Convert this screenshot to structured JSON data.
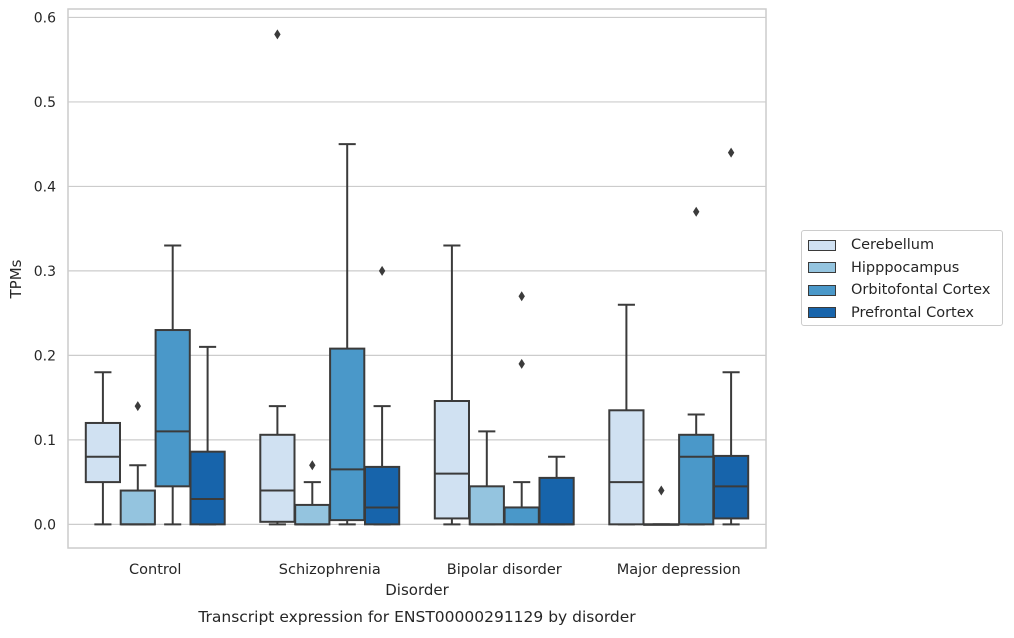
{
  "chart_data": {
    "type": "box",
    "title": "",
    "caption": "Transcript expression for ENST00000291129 by disorder",
    "xlabel": "Disorder",
    "ylabel": "TPMs",
    "ylim": [
      -0.028,
      0.61
    ],
    "yticks": [
      "0.0",
      "0.1",
      "0.2",
      "0.3",
      "0.4",
      "0.5",
      "0.6"
    ],
    "grid": "horizontal",
    "legend_position": "right",
    "categories": [
      "Control",
      "Schizophrenia",
      "Bipolar disorder",
      "Major depression"
    ],
    "series": [
      {
        "name": "Cerebellum",
        "color": "#d0e1f2",
        "boxes": [
          {
            "whislo": 0.0,
            "q1": 0.05,
            "med": 0.08,
            "q3": 0.12,
            "whishi": 0.18,
            "fliers": []
          },
          {
            "whislo": 0.0,
            "q1": 0.003,
            "med": 0.04,
            "q3": 0.106,
            "whishi": 0.14,
            "fliers": [
              0.58
            ]
          },
          {
            "whislo": 0.0,
            "q1": 0.007,
            "med": 0.06,
            "q3": 0.146,
            "whishi": 0.33,
            "fliers": []
          },
          {
            "whislo": 0.0,
            "q1": 0.0,
            "med": 0.05,
            "q3": 0.135,
            "whishi": 0.26,
            "fliers": []
          }
        ]
      },
      {
        "name": "Hipppocampus",
        "color": "#94c4df",
        "boxes": [
          {
            "whislo": 0.0,
            "q1": 0.0,
            "med": 0.0,
            "q3": 0.04,
            "whishi": 0.07,
            "fliers": [
              0.14
            ]
          },
          {
            "whislo": 0.0,
            "q1": 0.0,
            "med": 0.0,
            "q3": 0.023,
            "whishi": 0.05,
            "fliers": [
              0.07
            ]
          },
          {
            "whislo": 0.0,
            "q1": 0.0,
            "med": 0.0,
            "q3": 0.045,
            "whishi": 0.11,
            "fliers": []
          },
          {
            "whislo": 0.0,
            "q1": 0.0,
            "med": 0.0,
            "q3": 0.0,
            "whishi": 0.0,
            "fliers": [
              0.04
            ]
          }
        ]
      },
      {
        "name": "Orbitofontal Cortex",
        "color": "#4a98c9",
        "boxes": [
          {
            "whislo": 0.0,
            "q1": 0.045,
            "med": 0.11,
            "q3": 0.23,
            "whishi": 0.33,
            "fliers": []
          },
          {
            "whislo": 0.0,
            "q1": 0.005,
            "med": 0.065,
            "q3": 0.208,
            "whishi": 0.45,
            "fliers": []
          },
          {
            "whislo": 0.0,
            "q1": 0.0,
            "med": 0.0,
            "q3": 0.02,
            "whishi": 0.05,
            "fliers": [
              0.19,
              0.27
            ]
          },
          {
            "whislo": 0.0,
            "q1": 0.0,
            "med": 0.08,
            "q3": 0.106,
            "whishi": 0.13,
            "fliers": [
              0.37
            ]
          }
        ]
      },
      {
        "name": "Prefrontal Cortex",
        "color": "#1764ab",
        "boxes": [
          {
            "whislo": 0.0,
            "q1": 0.0,
            "med": 0.03,
            "q3": 0.086,
            "whishi": 0.21,
            "fliers": []
          },
          {
            "whislo": 0.0,
            "q1": 0.0,
            "med": 0.02,
            "q3": 0.068,
            "whishi": 0.14,
            "fliers": [
              0.3
            ]
          },
          {
            "whislo": 0.0,
            "q1": 0.0,
            "med": 0.0,
            "q3": 0.055,
            "whishi": 0.08,
            "fliers": []
          },
          {
            "whislo": 0.0,
            "q1": 0.007,
            "med": 0.045,
            "q3": 0.081,
            "whishi": 0.18,
            "fliers": [
              0.44
            ]
          }
        ]
      }
    ]
  }
}
